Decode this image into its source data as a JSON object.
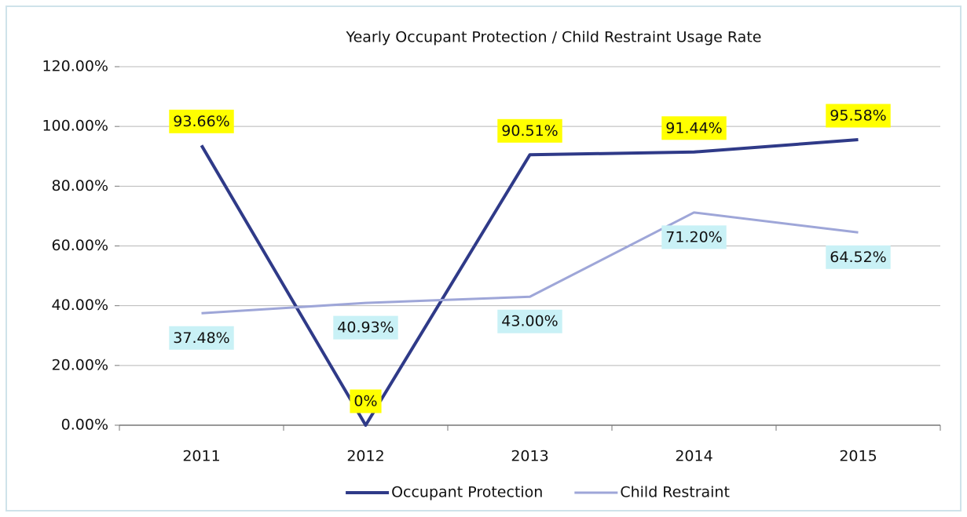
{
  "chart_data": {
    "type": "line",
    "title": "Yearly Occupant Protection / Child Restraint Usage Rate",
    "categories": [
      "2011",
      "2012",
      "2013",
      "2014",
      "2015"
    ],
    "series": [
      {
        "name": "Occupant Protection",
        "color": "#2f3a88",
        "label_background": "#ffff00",
        "label_position": "above",
        "values": [
          93.66,
          0,
          90.51,
          91.44,
          95.58
        ],
        "value_labels": [
          "93.66%",
          "0%",
          "90.51%",
          "91.44%",
          "95.58%"
        ]
      },
      {
        "name": "Child Restraint",
        "color": "#9ea6d8",
        "label_background": "#c9f1f6",
        "label_position": "below",
        "values": [
          37.48,
          40.93,
          43.0,
          71.2,
          64.52
        ],
        "value_labels": [
          "37.48%",
          "40.93%",
          "43.00%",
          "71.20%",
          "64.52%"
        ]
      }
    ],
    "ylim": [
      0,
      120
    ],
    "yticks": [
      {
        "value": 0,
        "label": "0.00%"
      },
      {
        "value": 20,
        "label": "20.00%"
      },
      {
        "value": 40,
        "label": "40.00%"
      },
      {
        "value": 60,
        "label": "60.00%"
      },
      {
        "value": 80,
        "label": "80.00%"
      },
      {
        "value": 100,
        "label": "100.00%"
      },
      {
        "value": 120,
        "label": "120.00%"
      }
    ],
    "grid": true,
    "legend": "bottom"
  }
}
